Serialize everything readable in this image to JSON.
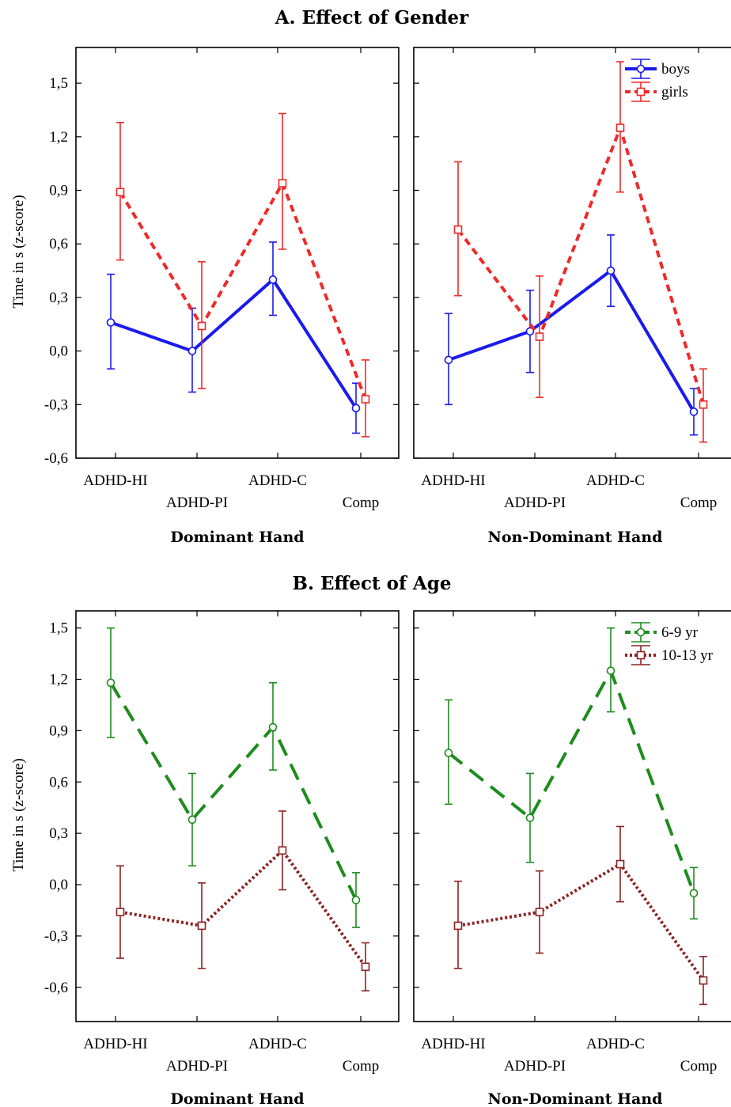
{
  "chart_data": [
    {
      "section": "A",
      "type": "line",
      "title": "A. Effect of Gender",
      "ylabel": "Time in s (z-score)",
      "ylim": [
        -0.6,
        1.7
      ],
      "yticks": [
        "1,5",
        "1,2",
        "0,9",
        "0,6",
        "0,3",
        "0,0",
        "-0,3",
        "-0,6"
      ],
      "ytick_values": [
        1.5,
        1.2,
        0.9,
        0.6,
        0.3,
        0.0,
        -0.3,
        -0.6
      ],
      "categories": [
        "ADHD-HI",
        "ADHD-PI",
        "ADHD-C",
        "Comp"
      ],
      "grid": false,
      "legend_position": "top-right of right panel",
      "series": [
        {
          "name": "boys",
          "color": "#1a1aee",
          "marker": "circle",
          "dash": "solid",
          "panels": {
            "dominant": {
              "values": [
                0.16,
                0.0,
                0.4,
                -0.32
              ],
              "lower": [
                -0.1,
                -0.23,
                0.2,
                -0.46
              ],
              "upper": [
                0.43,
                0.24,
                0.61,
                -0.18
              ]
            },
            "nondominant": {
              "values": [
                -0.05,
                0.11,
                0.45,
                -0.34
              ],
              "lower": [
                -0.3,
                -0.12,
                0.25,
                -0.47
              ],
              "upper": [
                0.21,
                0.34,
                0.65,
                -0.21
              ]
            }
          }
        },
        {
          "name": "girls",
          "color": "#ee2a2a",
          "marker": "square",
          "dash": "dashed",
          "panels": {
            "dominant": {
              "values": [
                0.89,
                0.14,
                0.94,
                -0.27
              ],
              "lower": [
                0.51,
                -0.21,
                0.57,
                -0.48
              ],
              "upper": [
                1.28,
                0.5,
                1.33,
                -0.05
              ]
            },
            "nondominant": {
              "values": [
                0.68,
                0.08,
                1.25,
                -0.3
              ],
              "lower": [
                0.31,
                -0.26,
                0.89,
                -0.51
              ],
              "upper": [
                1.06,
                0.42,
                1.62,
                -0.1
              ]
            }
          }
        }
      ],
      "panels": [
        {
          "key": "dominant",
          "xlabel": "Dominant Hand"
        },
        {
          "key": "nondominant",
          "xlabel": "Non-Dominant Hand"
        }
      ]
    },
    {
      "section": "B",
      "type": "line",
      "title": "B. Effect of Age",
      "ylabel": "Time in s (z-score)",
      "ylim": [
        -0.8,
        1.6
      ],
      "yticks": [
        "1,5",
        "1,2",
        "0,9",
        "0,6",
        "0,3",
        "0,0",
        "-0,3",
        "-0,6"
      ],
      "ytick_values": [
        1.5,
        1.2,
        0.9,
        0.6,
        0.3,
        0.0,
        -0.3,
        -0.6
      ],
      "categories": [
        "ADHD-HI",
        "ADHD-PI",
        "ADHD-C",
        "Comp"
      ],
      "grid": false,
      "legend_position": "top-right of right panel",
      "series": [
        {
          "name": "6-9 yr",
          "color": "#1e8c1e",
          "marker": "circle",
          "dash": "long-dash",
          "panels": {
            "dominant": {
              "values": [
                1.18,
                0.38,
                0.92,
                -0.09
              ],
              "lower": [
                0.86,
                0.11,
                0.67,
                -0.25
              ],
              "upper": [
                1.5,
                0.65,
                1.18,
                0.07
              ]
            },
            "nondominant": {
              "values": [
                0.77,
                0.39,
                1.25,
                -0.05
              ],
              "lower": [
                0.47,
                0.13,
                1.01,
                -0.2
              ],
              "upper": [
                1.08,
                0.65,
                1.5,
                0.1
              ]
            }
          }
        },
        {
          "name": "10-13 yr",
          "color": "#8b2323",
          "marker": "square",
          "dash": "dotted",
          "panels": {
            "dominant": {
              "values": [
                -0.16,
                -0.24,
                0.2,
                -0.48
              ],
              "lower": [
                -0.43,
                -0.49,
                -0.03,
                -0.62
              ],
              "upper": [
                0.11,
                0.01,
                0.43,
                -0.34
              ]
            },
            "nondominant": {
              "values": [
                -0.24,
                -0.16,
                0.12,
                -0.56
              ],
              "lower": [
                -0.49,
                -0.4,
                -0.1,
                -0.7
              ],
              "upper": [
                0.02,
                0.08,
                0.34,
                -0.42
              ]
            }
          }
        }
      ],
      "panels": [
        {
          "key": "dominant",
          "xlabel": "Dominant Hand"
        },
        {
          "key": "nondominant",
          "xlabel": "Non-Dominant Hand"
        }
      ]
    }
  ]
}
